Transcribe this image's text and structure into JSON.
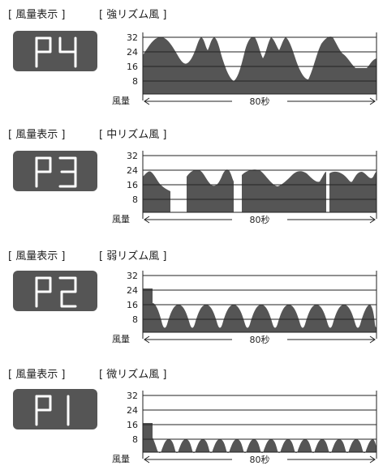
{
  "display_label": "[ 風量表示 ]",
  "panels": [
    {
      "display_code": "P4",
      "title": "[ 強リズム風 ]",
      "yticks": [
        "32",
        "24",
        "16",
        "8"
      ],
      "fan_label": "風量",
      "time_label": "80秒"
    },
    {
      "display_code": "P3",
      "title": "[ 中リズム風 ]",
      "yticks": [
        "32",
        "24",
        "16",
        "8"
      ],
      "fan_label": "風量",
      "time_label": "80秒"
    },
    {
      "display_code": "P2",
      "title": "[ 弱リズム風 ]",
      "yticks": [
        "32",
        "24",
        "16",
        "8"
      ],
      "fan_label": "風量",
      "time_label": "80秒"
    },
    {
      "display_code": "P1",
      "title": "[ 微リズム風 ]",
      "yticks": [
        "32",
        "24",
        "16",
        "8"
      ],
      "fan_label": "風量",
      "time_label": "80秒"
    }
  ],
  "colors": {
    "fill": "#555555",
    "lcd": "#555555",
    "segment": "#ffffff"
  }
}
